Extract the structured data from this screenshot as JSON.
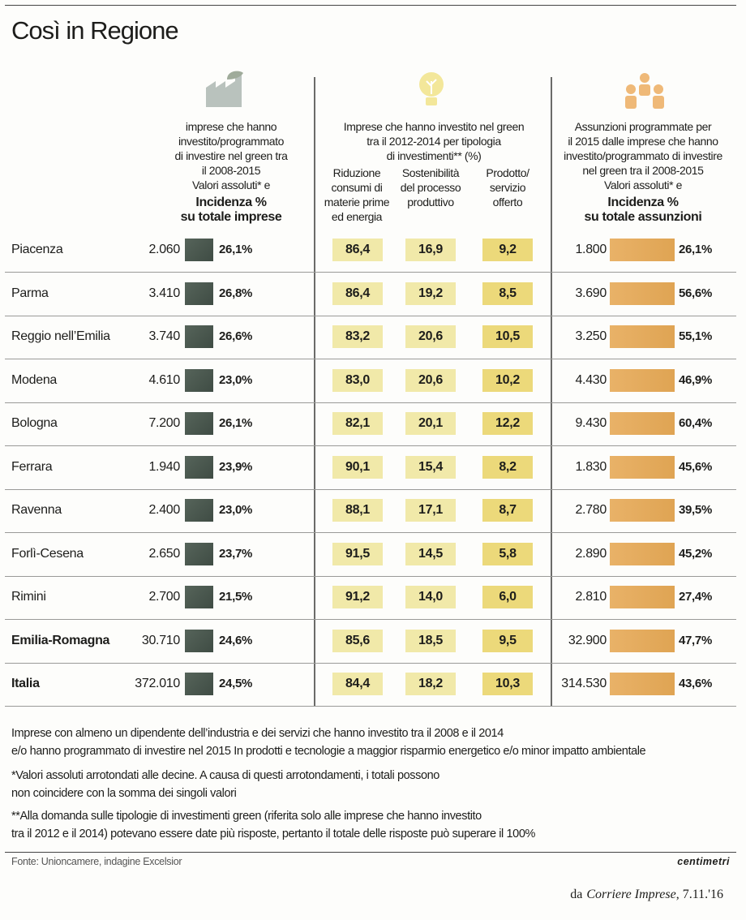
{
  "title": "Così in Regione",
  "header": {
    "imprese": {
      "lines": [
        "imprese che hanno",
        "investito/programmato",
        "di investire nel green tra",
        "il 2008-2015",
        "Valori assoluti* e"
      ],
      "bold": [
        "Incidenza %",
        "su totale imprese"
      ]
    },
    "green": {
      "lines": [
        "Imprese che hanno investito nel green",
        "tra il 2012-2014 per tipologia",
        "di investimenti** (%)"
      ],
      "sub": [
        [
          "Riduzione",
          "consumi di",
          "materie prime",
          "ed energia"
        ],
        [
          "Sostenibilità",
          "del processo",
          "produttivo"
        ],
        [
          "Prodotto/",
          "servizio",
          "offerto"
        ]
      ]
    },
    "assunzioni": {
      "lines": [
        "Assunzioni programmate per",
        "il 2015 dalle imprese che hanno",
        "investito/programmato di investire",
        "nel green tra il 2008-2015",
        "Valori assoluti* e"
      ],
      "bold": [
        "Incidenza %",
        "su totale assunzioni"
      ]
    }
  },
  "rows": [
    {
      "name": "Piacenza",
      "imprese": "2.060",
      "imprese_pct": "26,1%",
      "riduzione": "86,4",
      "sostenibilita": "16,9",
      "prodotto": "9,2",
      "assunzioni": "1.800",
      "assunzioni_pct": "26,1%"
    },
    {
      "name": "Parma",
      "imprese": "3.410",
      "imprese_pct": "26,8%",
      "riduzione": "86,4",
      "sostenibilita": "19,2",
      "prodotto": "8,5",
      "assunzioni": "3.690",
      "assunzioni_pct": "56,6%"
    },
    {
      "name": "Reggio nell’Emilia",
      "imprese": "3.740",
      "imprese_pct": "26,6%",
      "riduzione": "83,2",
      "sostenibilita": "20,6",
      "prodotto": "10,5",
      "assunzioni": "3.250",
      "assunzioni_pct": "55,1%"
    },
    {
      "name": "Modena",
      "imprese": "4.610",
      "imprese_pct": "23,0%",
      "riduzione": "83,0",
      "sostenibilita": "20,6",
      "prodotto": "10,2",
      "assunzioni": "4.430",
      "assunzioni_pct": "46,9%"
    },
    {
      "name": "Bologna",
      "imprese": "7.200",
      "imprese_pct": "26,1%",
      "riduzione": "82,1",
      "sostenibilita": "20,1",
      "prodotto": "12,2",
      "assunzioni": "9.430",
      "assunzioni_pct": "60,4%"
    },
    {
      "name": "Ferrara",
      "imprese": "1.940",
      "imprese_pct": "23,9%",
      "riduzione": "90,1",
      "sostenibilita": "15,4",
      "prodotto": "8,2",
      "assunzioni": "1.830",
      "assunzioni_pct": "45,6%"
    },
    {
      "name": "Ravenna",
      "imprese": "2.400",
      "imprese_pct": "23,0%",
      "riduzione": "88,1",
      "sostenibilita": "17,1",
      "prodotto": "8,7",
      "assunzioni": "2.780",
      "assunzioni_pct": "39,5%"
    },
    {
      "name": "Forlì-Cesena",
      "imprese": "2.650",
      "imprese_pct": "23,7%",
      "riduzione": "91,5",
      "sostenibilita": "14,5",
      "prodotto": "5,8",
      "assunzioni": "2.890",
      "assunzioni_pct": "45,2%"
    },
    {
      "name": "Rimini",
      "imprese": "2.700",
      "imprese_pct": "21,5%",
      "riduzione": "91,2",
      "sostenibilita": "14,0",
      "prodotto": "6,0",
      "assunzioni": "2.810",
      "assunzioni_pct": "27,4%"
    },
    {
      "name": "Emilia-Romagna",
      "imprese": "30.710",
      "imprese_pct": "24,6%",
      "riduzione": "85,6",
      "sostenibilita": "18,5",
      "prodotto": "9,5",
      "assunzioni": "32.900",
      "assunzioni_pct": "47,7%"
    },
    {
      "name": "Italia",
      "imprese": "372.010",
      "imprese_pct": "24,5%",
      "riduzione": "84,4",
      "sostenibilita": "18,2",
      "prodotto": "10,3",
      "assunzioni": "314.530",
      "assunzioni_pct": "43,6%"
    }
  ],
  "notes": [
    [
      "Imprese con almeno un dipendente dell’industria e dei servizi che hanno investito tra il 2008 e il 2014",
      "e/o hanno programmato di investire nel 2015 In prodotti e tecnologie a maggior risparmio energetico e/o minor impatto ambientale"
    ],
    [
      "*Valori assoluti arrotondati alle decine. A causa di questi arrotondamenti, i totali possono",
      "non coincidere con la somma dei singoli valori"
    ],
    [
      "**Alla domanda sulle tipologie di investimenti green (riferita solo alle imprese che hanno investito",
      "tra il 2012 e il 2014) potevano essere date più risposte, pertanto il totale delle risposte può superare il 100%"
    ]
  ],
  "source": "Fonte: Unioncamere, indagine Excelsior",
  "brand": "centimetri",
  "caption": {
    "prefix": "da",
    "publication": "Corriere Imprese",
    "date": ", 7.11.'16"
  }
}
